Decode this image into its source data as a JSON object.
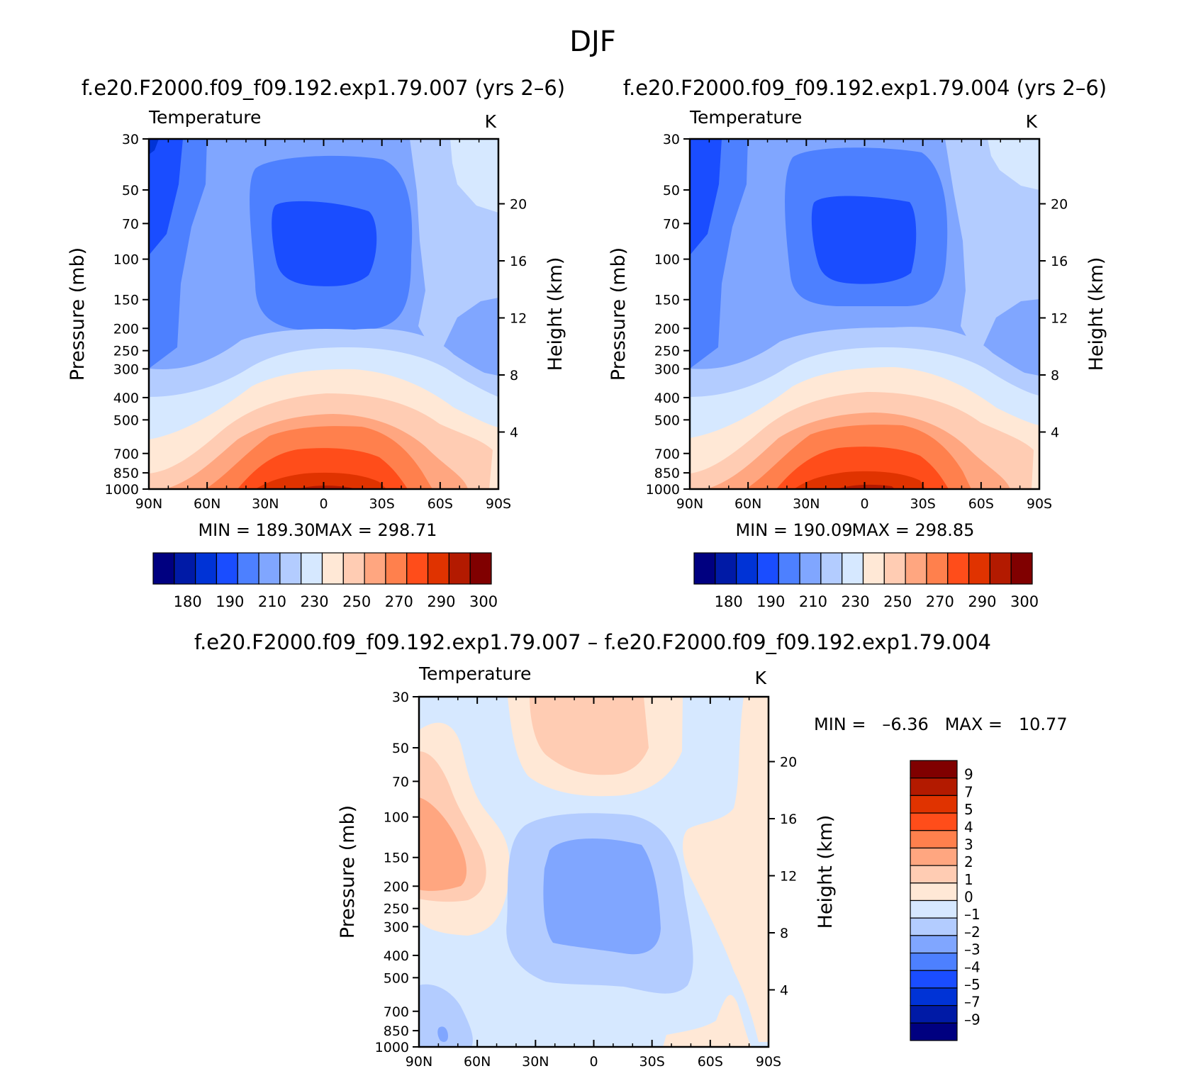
{
  "figure": {
    "title": "DJF",
    "var_label": "Temperature",
    "units": "K",
    "y_left_label": "Pressure (mb)",
    "y_right_label": "Height (km)"
  },
  "chart_data": [
    {
      "type": "contour",
      "title": "f.e20.F2000.f09_f09.192.exp1.79.007 (yrs 2–6)",
      "variable": "Temperature",
      "units": "K",
      "xlabel": "",
      "ylabel": "Pressure (mb)",
      "ylabel_right": "Height (km)",
      "x_ticks": [
        "90N",
        "60N",
        "30N",
        "0",
        "30S",
        "60S",
        "90S"
      ],
      "x_tick_values": [
        90,
        60,
        30,
        0,
        -30,
        -60,
        -90
      ],
      "y_ticks": [
        "30",
        "50",
        "70",
        "100",
        "150",
        "200",
        "250",
        "300",
        "400",
        "500",
        "700",
        "850",
        "1000"
      ],
      "y_tick_values": [
        30,
        50,
        70,
        100,
        150,
        200,
        250,
        300,
        400,
        500,
        700,
        850,
        1000
      ],
      "ylim": [
        1000,
        30
      ],
      "height_ticks": [
        "4",
        "8",
        "12",
        "16",
        "20"
      ],
      "min_label": "MIN = 189.30",
      "max_label": "MAX = 298.71",
      "min": 189.3,
      "max": 298.71,
      "levels": [
        175,
        180,
        185,
        190,
        200,
        210,
        220,
        230,
        240,
        250,
        260,
        270,
        280,
        290,
        295,
        300
      ],
      "colorbar_labels": [
        "180",
        "190",
        "210",
        "230",
        "250",
        "270",
        "290",
        "300"
      ]
    },
    {
      "type": "contour",
      "title": "f.e20.F2000.f09_f09.192.exp1.79.004 (yrs 2–6)",
      "variable": "Temperature",
      "units": "K",
      "xlabel": "",
      "ylabel": "Pressure (mb)",
      "ylabel_right": "Height (km)",
      "x_ticks": [
        "90N",
        "60N",
        "30N",
        "0",
        "30S",
        "60S",
        "90S"
      ],
      "x_tick_values": [
        90,
        60,
        30,
        0,
        -30,
        -60,
        -90
      ],
      "y_ticks": [
        "30",
        "50",
        "70",
        "100",
        "150",
        "200",
        "250",
        "300",
        "400",
        "500",
        "700",
        "850",
        "1000"
      ],
      "y_tick_values": [
        30,
        50,
        70,
        100,
        150,
        200,
        250,
        300,
        400,
        500,
        700,
        850,
        1000
      ],
      "ylim": [
        1000,
        30
      ],
      "height_ticks": [
        "4",
        "8",
        "12",
        "16",
        "20"
      ],
      "min_label": "MIN = 190.09",
      "max_label": "MAX = 298.85",
      "min": 190.09,
      "max": 298.85,
      "levels": [
        175,
        180,
        185,
        190,
        200,
        210,
        220,
        230,
        240,
        250,
        260,
        270,
        280,
        290,
        295,
        300
      ],
      "colorbar_labels": [
        "180",
        "190",
        "210",
        "230",
        "250",
        "270",
        "290",
        "300"
      ]
    },
    {
      "type": "contour",
      "title": "f.e20.F2000.f09_f09.192.exp1.79.007 – f.e20.F2000.f09_f09.192.exp1.79.004",
      "variable": "Temperature",
      "units": "K",
      "xlabel": "",
      "ylabel": "Pressure (mb)",
      "ylabel_right": "Height (km)",
      "x_ticks": [
        "90N",
        "60N",
        "30N",
        "0",
        "30S",
        "60S",
        "90S"
      ],
      "x_tick_values": [
        90,
        60,
        30,
        0,
        -30,
        -60,
        -90
      ],
      "y_ticks": [
        "30",
        "50",
        "70",
        "100",
        "150",
        "200",
        "250",
        "300",
        "400",
        "500",
        "700",
        "850",
        "1000"
      ],
      "y_tick_values": [
        30,
        50,
        70,
        100,
        150,
        200,
        250,
        300,
        400,
        500,
        700,
        850,
        1000
      ],
      "ylim": [
        1000,
        30
      ],
      "height_ticks": [
        "4",
        "8",
        "12",
        "16",
        "20"
      ],
      "minmax_label": "MIN =   –6.36   MAX =   10.77",
      "min": -6.36,
      "max": 10.77,
      "levels": [
        -9,
        -7,
        -5,
        -4,
        -3,
        -2,
        -1,
        0,
        1,
        2,
        3,
        4,
        5,
        7,
        9
      ],
      "colorbar_labels": [
        "9",
        "7",
        "5",
        "4",
        "3",
        "2",
        "1",
        "0",
        "–1",
        "–2",
        "–3",
        "–4",
        "–5",
        "–7",
        "–9"
      ]
    }
  ],
  "palettes": {
    "abs": [
      "#000080",
      "#001aa6",
      "#0033d6",
      "#1a4dff",
      "#4d80ff",
      "#80a6ff",
      "#b3ccff",
      "#d6e8ff",
      "#ffe8d6",
      "#ffccb3",
      "#ffa680",
      "#ff804d",
      "#ff4d1a",
      "#e03300",
      "#b31a00",
      "#800000"
    ],
    "diff": [
      "#800000",
      "#b31a00",
      "#e03300",
      "#ff4d1a",
      "#ff804d",
      "#ffa680",
      "#ffccb3",
      "#ffe8d6",
      "#d6e8ff",
      "#b3ccff",
      "#80a6ff",
      "#4d80ff",
      "#1a4dff",
      "#0033d6",
      "#001aa6",
      "#000080"
    ]
  }
}
